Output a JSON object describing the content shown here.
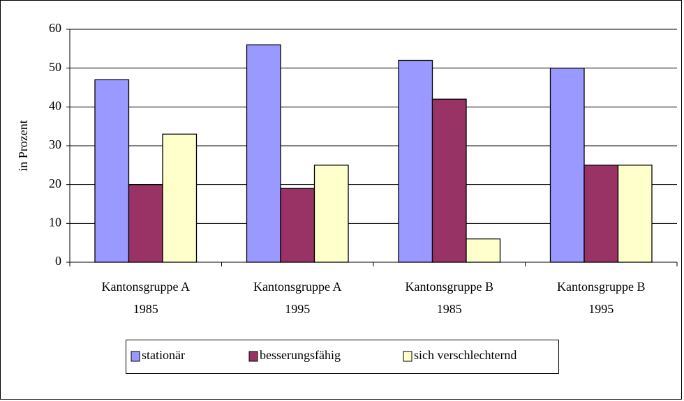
{
  "chart_data": {
    "type": "bar",
    "y_label": "in Prozent",
    "categories": [
      [
        "Kantonsgruppe A",
        "1985"
      ],
      [
        "Kantonsgruppe A",
        "1995"
      ],
      [
        "Kantonsgruppe B",
        "1985"
      ],
      [
        "Kantonsgruppe B",
        "1995"
      ]
    ],
    "series": [
      {
        "name": "stationär",
        "color": "#9999ff",
        "values": [
          47,
          56,
          52,
          50
        ]
      },
      {
        "name": "besserungsfähig",
        "color": "#993366",
        "values": [
          20,
          19,
          42,
          25
        ]
      },
      {
        "name": "sich verschlechternd",
        "color": "#ffffcc",
        "values": [
          33,
          25,
          6,
          25
        ]
      }
    ],
    "ylim": [
      0,
      60
    ],
    "yticks": [
      0,
      10,
      20,
      30,
      40,
      50,
      60
    ],
    "grid": true,
    "legend": "bottom"
  }
}
